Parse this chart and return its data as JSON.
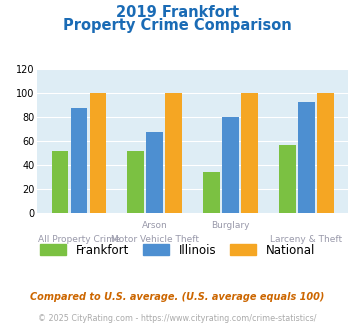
{
  "title_line1": "2019 Frankfort",
  "title_line2": "Property Crime Comparison",
  "frankfort": [
    52,
    52,
    34,
    57
  ],
  "illinois": [
    88,
    68,
    80,
    93
  ],
  "national": [
    100,
    100,
    100,
    100
  ],
  "frankfort_color": "#7bc142",
  "illinois_color": "#4d8fd1",
  "national_color": "#f5a623",
  "ylim": [
    0,
    120
  ],
  "yticks": [
    0,
    20,
    40,
    60,
    80,
    100,
    120
  ],
  "bg_color": "#deedf5",
  "title_color": "#1a6bb5",
  "legend_labels": [
    "Frankfort",
    "Illinois",
    "National"
  ],
  "top_labels": [
    "",
    "Arson",
    "Burglary",
    ""
  ],
  "bot_labels": [
    "All Property Crime",
    "Motor Vehicle Theft",
    "",
    "Larceny & Theft"
  ],
  "label_color": "#9999aa",
  "footnote1": "Compared to U.S. average. (U.S. average equals 100)",
  "footnote2": "© 2025 CityRating.com - https://www.cityrating.com/crime-statistics/",
  "footnote1_color": "#cc6600",
  "footnote2_color": "#aaaaaa"
}
